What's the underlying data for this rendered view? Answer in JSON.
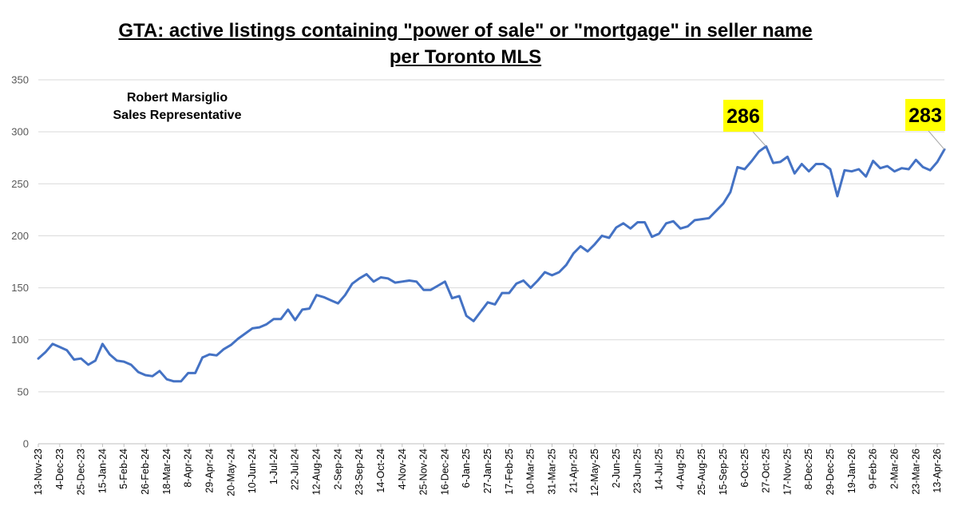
{
  "chart_data": {
    "type": "line",
    "title": "GTA: active listings containing \"power of sale\" or \"mortgage\" in seller name",
    "subtitle": "per Toronto MLS",
    "annotation_lines": [
      "Robert Marsiglio",
      "Sales Representative"
    ],
    "xlabel": "",
    "ylabel": "",
    "ylim": [
      0,
      350
    ],
    "yticks": [
      0,
      50,
      100,
      150,
      200,
      250,
      300,
      350
    ],
    "grid": true,
    "legend": "none",
    "x_tick_labels": [
      "13-Nov-23",
      "4-Dec-23",
      "25-Dec-23",
      "15-Jan-24",
      "5-Feb-24",
      "26-Feb-24",
      "18-Mar-24",
      "8-Apr-24",
      "29-Apr-24",
      "20-May-24",
      "10-Jun-24",
      "1-Jul-24",
      "22-Jul-24",
      "12-Aug-24",
      "2-Sep-24",
      "23-Sep-24",
      "14-Oct-24",
      "4-Nov-24",
      "25-Nov-24",
      "16-Dec-24",
      "6-Jan-25",
      "27-Jan-25",
      "17-Feb-25",
      "10-Mar-25",
      "31-Mar-25",
      "21-Apr-25",
      "12-May-25",
      "2-Jun-25",
      "23-Jun-25",
      "14-Jul-25",
      "4-Aug-25",
      "25-Aug-25",
      "15-Sep-25",
      "6-Oct-25",
      "27-Oct-25",
      "17-Nov-25",
      "8-Dec-25",
      "29-Dec-25",
      "19-Jan-26",
      "9-Feb-26",
      "2-Mar-26",
      "23-Mar-26",
      "13-Apr-26"
    ],
    "series": [
      {
        "color": "#4472C4",
        "values": [
          82,
          88,
          96,
          93,
          90,
          81,
          82,
          76,
          80,
          96,
          86,
          80,
          79,
          76,
          69,
          66,
          65,
          70,
          62,
          60,
          60,
          68,
          68,
          83,
          86,
          85,
          91,
          95,
          101,
          106,
          111,
          112,
          115,
          120,
          120,
          129,
          119,
          129,
          130,
          143,
          141,
          138,
          135,
          143,
          154,
          159,
          163,
          156,
          160,
          159,
          155,
          156,
          157,
          156,
          148,
          148,
          152,
          156,
          140,
          142,
          123,
          118,
          127,
          136,
          134,
          145,
          145,
          154,
          157,
          150,
          157,
          165,
          162,
          165,
          172,
          183,
          190,
          185,
          192,
          200,
          198,
          208,
          212,
          207,
          213,
          213,
          199,
          202,
          212,
          214,
          207,
          209,
          215,
          216,
          217,
          224,
          231,
          242,
          266,
          264,
          272,
          281,
          286,
          270,
          271,
          276,
          260,
          269,
          262,
          269,
          269,
          264,
          238,
          263,
          262,
          264,
          257,
          272,
          265,
          267,
          262,
          265,
          264,
          273,
          266,
          263,
          271,
          283
        ]
      }
    ],
    "callouts": [
      {
        "label": "286",
        "value": 286,
        "background": "#FFFF00"
      },
      {
        "label": "283",
        "value": 283,
        "background": "#FFFF00"
      }
    ]
  }
}
